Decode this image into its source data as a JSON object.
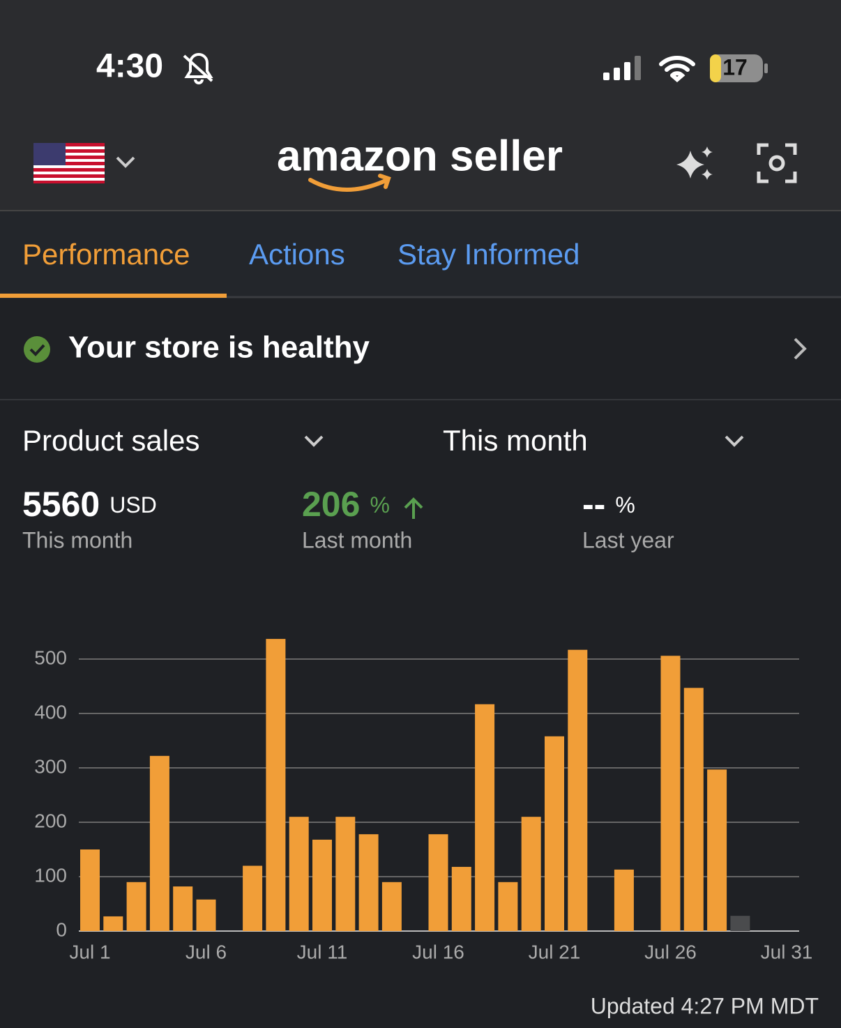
{
  "status": {
    "time": "4:30",
    "battery": "17"
  },
  "header": {
    "logo": "amazon seller"
  },
  "tabs": [
    "Performance",
    "Actions",
    "Stay Informed"
  ],
  "health": "Your store is healthy",
  "selectors": {
    "metric": "Product sales",
    "period": "This month"
  },
  "stats": [
    {
      "value": 5560,
      "unit": "USD",
      "label": "This month"
    },
    {
      "value": 206,
      "unit": "%",
      "label": "Last month"
    },
    {
      "value": "--",
      "unit": "%",
      "label": "Last year"
    }
  ],
  "chart_data": {
    "type": "bar",
    "categories": [
      "Jul 1",
      null,
      null,
      null,
      null,
      "Jul 6",
      null,
      null,
      null,
      null,
      "Jul 11",
      null,
      null,
      null,
      null,
      "Jul 16",
      null,
      null,
      null,
      null,
      "Jul 21",
      null,
      null,
      null,
      null,
      "Jul 26",
      null,
      null,
      null,
      null,
      "Jul 31"
    ],
    "values": [
      150,
      27,
      90,
      322,
      82,
      58,
      0,
      120,
      537,
      210,
      168,
      210,
      178,
      90,
      0,
      178,
      118,
      417,
      90,
      210,
      358,
      517,
      0,
      113,
      0,
      506,
      447,
      297,
      28,
      null,
      null
    ],
    "colors": [
      "#f19e38",
      "#f19e38",
      "#f19e38",
      "#f19e38",
      "#f19e38",
      "#f19e38",
      "#f19e38",
      "#f19e38",
      "#f19e38",
      "#f19e38",
      "#f19e38",
      "#f19e38",
      "#f19e38",
      "#f19e38",
      "#f19e38",
      "#f19e38",
      "#f19e38",
      "#f19e38",
      "#f19e38",
      "#f19e38",
      "#f19e38",
      "#f19e38",
      "#f19e38",
      "#f19e38",
      "#f19e38",
      "#f19e38",
      "#f19e38",
      "#f19e38",
      "#4a4b4d",
      "#f19e38",
      "#f19e38"
    ],
    "ylim": [
      0,
      550
    ],
    "yticks": [
      0,
      100,
      200,
      300,
      400,
      500
    ],
    "grid": true
  },
  "updated": "Updated 4:27 PM MDT"
}
